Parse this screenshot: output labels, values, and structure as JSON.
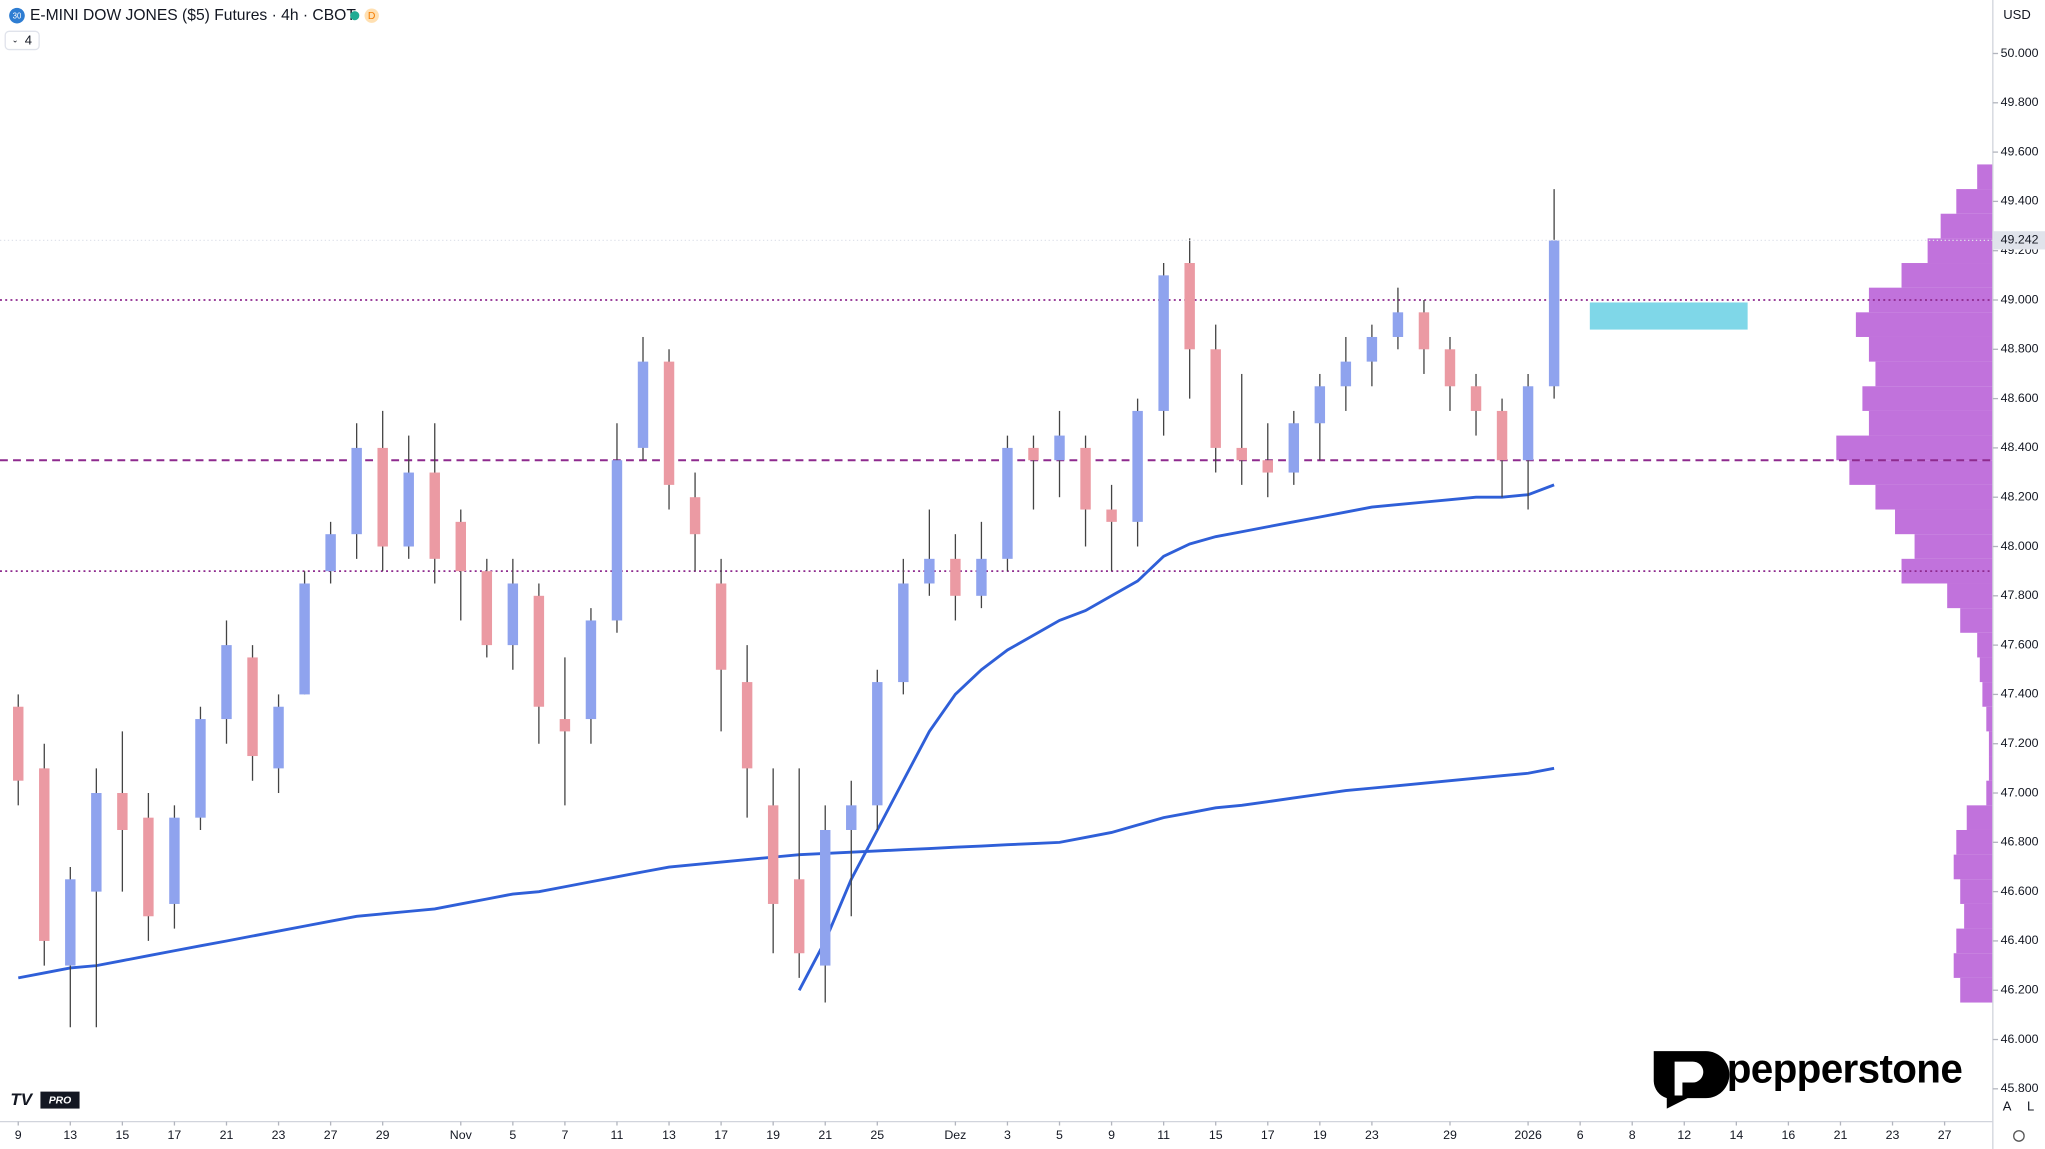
{
  "header": {
    "icon": "30",
    "badge": "D",
    "indicator": "4",
    "currency": "USD",
    "brand": "pepperstone",
    "tv_logo": "TV",
    "tv_tier": "PRO",
    "buttons": [
      "A",
      "L"
    ]
  },
  "chart_data": {
    "type": "candlestick",
    "title": "E-MINI DOW JONES ($5) Futures · 4h · CBOT",
    "categories": [
      "9",
      null,
      "13",
      null,
      "15",
      null,
      "17",
      null,
      "21",
      null,
      "23",
      null,
      "27",
      null,
      "29",
      null,
      null,
      "Nov",
      null,
      "5",
      null,
      "7",
      null,
      "11",
      null,
      "13",
      null,
      "17",
      null,
      "19",
      null,
      "21",
      null,
      "25",
      null,
      null,
      "Dez",
      null,
      "3",
      null,
      "5",
      null,
      "9",
      null,
      "11",
      null,
      "15",
      null,
      "17",
      null,
      "19",
      null,
      "23",
      null,
      null,
      "29",
      null,
      null,
      "2026",
      null,
      "6",
      null,
      "8",
      null,
      "12",
      null,
      "14",
      null,
      "16",
      null,
      "21",
      null,
      "23",
      null,
      "27",
      null
    ],
    "open": [
      47350,
      47100,
      46300,
      46600,
      47000,
      46900,
      46550,
      46900,
      47300,
      47550,
      47100,
      47400,
      47900,
      48050,
      48400,
      48000,
      48300,
      48100,
      47900,
      47600,
      47800,
      47300,
      47300,
      47700,
      48400,
      48750,
      48200,
      47850,
      47450,
      46950,
      46650,
      46300,
      46850,
      46950,
      47450,
      47850,
      47950,
      47800,
      47950,
      48400,
      48350,
      48400,
      48150,
      48100,
      48550,
      49150,
      48800,
      48400,
      48350,
      48300,
      48500,
      48650,
      48750,
      48850,
      48950,
      48800,
      48650,
      48550,
      48350,
      48650,
      null,
      null,
      null,
      null,
      null,
      null,
      null,
      null,
      null,
      null,
      null,
      null,
      null,
      null,
      null,
      null
    ],
    "high": [
      47400,
      47200,
      46700,
      47100,
      47250,
      47000,
      46950,
      47350,
      47700,
      47600,
      47400,
      47900,
      48100,
      48500,
      48550,
      48450,
      48500,
      48150,
      47950,
      47950,
      47850,
      47550,
      47750,
      48500,
      48850,
      48800,
      48300,
      47950,
      47600,
      47100,
      47100,
      46950,
      47050,
      47500,
      47950,
      48150,
      48050,
      48100,
      48450,
      48450,
      48550,
      48450,
      48250,
      48600,
      49150,
      49250,
      48900,
      48700,
      48500,
      48550,
      48700,
      48850,
      48900,
      49050,
      49000,
      48850,
      48700,
      48600,
      48700,
      49450,
      null,
      null,
      null,
      null,
      null,
      null,
      null,
      null,
      null,
      null,
      null,
      null,
      null,
      null,
      null,
      null
    ],
    "low": [
      46950,
      46300,
      46050,
      46050,
      46600,
      46400,
      46450,
      46850,
      47200,
      47050,
      47000,
      47400,
      47850,
      47950,
      47900,
      47950,
      47850,
      47700,
      47550,
      47500,
      47200,
      46950,
      47200,
      47650,
      48350,
      48150,
      47900,
      47250,
      46900,
      46350,
      46250,
      46150,
      46500,
      46850,
      47400,
      47800,
      47700,
      47750,
      47900,
      48150,
      48200,
      48000,
      47900,
      48000,
      48450,
      48600,
      48300,
      48250,
      48200,
      48250,
      48350,
      48550,
      48650,
      48800,
      48700,
      48550,
      48450,
      48200,
      48150,
      48600,
      null,
      null,
      null,
      null,
      null,
      null,
      null,
      null,
      null,
      null,
      null,
      null,
      null,
      null,
      null,
      null
    ],
    "close": [
      47050,
      46400,
      46650,
      47000,
      46850,
      46500,
      46900,
      47300,
      47600,
      47150,
      47350,
      47850,
      48050,
      48400,
      48000,
      48300,
      47950,
      47900,
      47600,
      47850,
      47350,
      47250,
      47700,
      48350,
      48750,
      48250,
      48050,
      47500,
      47100,
      46550,
      46350,
      46850,
      46950,
      47450,
      47850,
      47950,
      47800,
      47950,
      48400,
      48350,
      48450,
      48150,
      48100,
      48550,
      49100,
      48800,
      48400,
      48350,
      48300,
      48500,
      48650,
      48750,
      48850,
      48950,
      48800,
      48650,
      48550,
      48350,
      48650,
      49242,
      null,
      null,
      null,
      null,
      null,
      null,
      null,
      null,
      null,
      null,
      null,
      null,
      null,
      null,
      null,
      null
    ],
    "up_color": "#8fa3ee",
    "down_color": "#eb9aa3",
    "wick_color": "#444444",
    "series": [
      {
        "type": "line",
        "color": "#2f5fd8",
        "values": [
          46250,
          46270,
          46290,
          46300,
          46320,
          46340,
          46360,
          46380,
          46400,
          46420,
          46440,
          46460,
          46480,
          46500,
          46510,
          46520,
          46530,
          46550,
          46570,
          46590,
          46600,
          46620,
          46640,
          46660,
          46680,
          46700,
          46710,
          46720,
          46730,
          46740,
          46750,
          46755,
          46760,
          46765,
          46770,
          46775,
          46780,
          46785,
          46790,
          46795,
          46800,
          46820,
          46840,
          46870,
          46900,
          46920,
          46940,
          46950,
          46965,
          46980,
          46995,
          47010,
          47020,
          47030,
          47040,
          47050,
          47060,
          47070,
          47080,
          47100,
          null,
          null,
          null,
          null,
          null,
          null,
          null,
          null,
          null,
          null,
          null,
          null,
          null,
          null,
          null,
          null
        ]
      },
      {
        "type": "line",
        "color": "#2f5fd8",
        "values": [
          null,
          null,
          null,
          null,
          null,
          null,
          null,
          null,
          null,
          null,
          null,
          null,
          null,
          null,
          null,
          null,
          null,
          null,
          null,
          null,
          null,
          null,
          null,
          null,
          null,
          null,
          null,
          null,
          null,
          null,
          46200,
          46400,
          46650,
          46850,
          47050,
          47250,
          47400,
          47500,
          47580,
          47640,
          47700,
          47740,
          47800,
          47860,
          47960,
          48010,
          48040,
          48060,
          48080,
          48100,
          48120,
          48140,
          48160,
          48170,
          48180,
          48190,
          48200,
          48200,
          48210,
          48250,
          null,
          null,
          null,
          null,
          null,
          null,
          null,
          null,
          null,
          null,
          null,
          null,
          null,
          null,
          null,
          null
        ]
      }
    ],
    "levels": [
      {
        "value": 49000,
        "dash": "dotted"
      },
      {
        "value": 48350,
        "dash": "dashed"
      },
      {
        "value": 47900,
        "dash": "dotted"
      }
    ],
    "level_color": "#8e2a8e",
    "zone": {
      "ylim": [
        48880,
        48990
      ],
      "color": "#7fd7e8"
    },
    "volume_profile": {
      "color": "#b24fd3",
      "prices": [
        46200,
        46300,
        46400,
        46500,
        46600,
        46700,
        46800,
        46900,
        47000,
        47100,
        47200,
        47300,
        47400,
        47500,
        47600,
        47700,
        47800,
        47900,
        48000,
        48100,
        48200,
        48300,
        48400,
        48500,
        48600,
        48700,
        48800,
        48900,
        49000,
        49100,
        49200,
        49300,
        49400,
        49500
      ],
      "values": [
        25,
        30,
        28,
        22,
        25,
        30,
        28,
        20,
        5,
        3,
        3,
        5,
        8,
        10,
        12,
        25,
        35,
        70,
        60,
        75,
        90,
        110,
        120,
        95,
        100,
        90,
        95,
        105,
        95,
        70,
        50,
        40,
        28,
        12
      ]
    },
    "ylim": [
      45667,
      50217
    ],
    "yticks": [
      {
        "value": 45800,
        "label": "45.800"
      },
      {
        "value": 46000,
        "label": "46.000"
      },
      {
        "value": 46200,
        "label": "46.200"
      },
      {
        "value": 46400,
        "label": "46.400"
      },
      {
        "value": 46600,
        "label": "46.600"
      },
      {
        "value": 46800,
        "label": "46.800"
      },
      {
        "value": 47000,
        "label": "47.000"
      },
      {
        "value": 47200,
        "label": "47.200"
      },
      {
        "value": 47400,
        "label": "47.400"
      },
      {
        "value": 47600,
        "label": "47.600"
      },
      {
        "value": 47800,
        "label": "47.800"
      },
      {
        "value": 48000,
        "label": "48.000"
      },
      {
        "value": 48200,
        "label": "48.200"
      },
      {
        "value": 48400,
        "label": "48.400"
      },
      {
        "value": 48600,
        "label": "48.600"
      },
      {
        "value": 48800,
        "label": "48.800"
      },
      {
        "value": 49000,
        "label": "49.000"
      },
      {
        "value": 49200,
        "label": "49.200"
      },
      {
        "value": 49400,
        "label": "49.400"
      },
      {
        "value": 49600,
        "label": "49.600"
      },
      {
        "value": 49800,
        "label": "49.800"
      },
      {
        "value": 50000,
        "label": "50.000"
      }
    ],
    "last_price": {
      "value": 49242,
      "label": "49.242"
    }
  }
}
